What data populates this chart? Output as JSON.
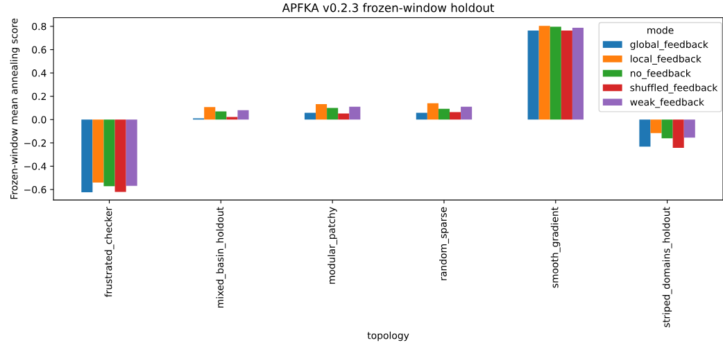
{
  "chart_data": {
    "type": "bar",
    "title": "APFKA v0.2.3 frozen-window holdout",
    "xlabel": "topology",
    "ylabel": "Frozen-window mean annealing score",
    "legend_title": "mode",
    "categories": [
      "frustrated_checker",
      "mixed_basin_holdout",
      "modular_patchy",
      "random_sparse",
      "smooth_gradient",
      "striped_domains_holdout"
    ],
    "series": [
      {
        "name": "global_feedback",
        "color": "#1f77b4",
        "values": [
          -0.624,
          0.01,
          0.058,
          0.058,
          0.764,
          -0.232
        ]
      },
      {
        "name": "local_feedback",
        "color": "#ff7f0e",
        "values": [
          -0.54,
          0.108,
          0.132,
          0.14,
          0.804,
          -0.116
        ]
      },
      {
        "name": "no_feedback",
        "color": "#2ca02c",
        "values": [
          -0.572,
          0.07,
          0.1,
          0.092,
          0.796,
          -0.16
        ]
      },
      {
        "name": "shuffled_feedback",
        "color": "#d62728",
        "values": [
          -0.62,
          0.022,
          0.052,
          0.064,
          0.764,
          -0.242
        ]
      },
      {
        "name": "weak_feedback",
        "color": "#9467bd",
        "values": [
          -0.568,
          0.08,
          0.11,
          0.11,
          0.788,
          -0.154
        ]
      }
    ],
    "ylim": [
      -0.69,
      0.874
    ],
    "yticks": [
      {
        "value": -0.6,
        "label": "−0.6"
      },
      {
        "value": -0.4,
        "label": "−0.4"
      },
      {
        "value": -0.2,
        "label": "−0.2"
      },
      {
        "value": 0.0,
        "label": "0.0"
      },
      {
        "value": 0.2,
        "label": "0.2"
      },
      {
        "value": 0.4,
        "label": "0.4"
      },
      {
        "value": 0.6,
        "label": "0.6"
      },
      {
        "value": 0.8,
        "label": "0.8"
      }
    ],
    "grid": false,
    "legend": "top right"
  }
}
